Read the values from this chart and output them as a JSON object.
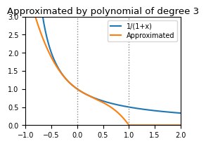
{
  "title": "Approximated by polynomial of degree 3",
  "xlim": [
    -1.0,
    2.0
  ],
  "ylim": [
    0.0,
    3.0
  ],
  "xticks": [
    -1.0,
    -0.5,
    0.0,
    0.5,
    1.0,
    1.5,
    2.0
  ],
  "yticks": [
    0.0,
    0.5,
    1.0,
    1.5,
    2.0,
    2.5,
    3.0
  ],
  "vlines": [
    0.0,
    1.0
  ],
  "vline_color": "#888888",
  "vline_style": "dotted",
  "line1_color": "#1f77b4",
  "line2_color": "#ff7f0e",
  "line1_label": "1/(1+x)",
  "line2_label": "Approximated",
  "legend_loc": "upper right",
  "title_fontsize": 9.5,
  "x_start": -1.0,
  "x_end": 2.0,
  "num_points": 2000
}
